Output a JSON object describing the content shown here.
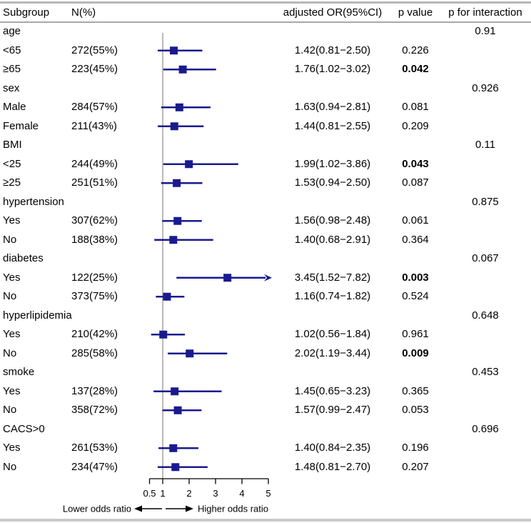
{
  "header": {
    "subgroup": "Subgroup",
    "n": "N(%)",
    "or": "adjusted OR(95%CI)",
    "p": "p value",
    "p_interaction": "p for interaction"
  },
  "footer": {
    "lower": "Lower odds ratio",
    "higher": "Higher odds ratio"
  },
  "colors": {
    "marker": "#1a1a8f",
    "ci_line": "#1a1a8f",
    "reference_line": "#b3b3b3",
    "axis": "#000000",
    "border": "#b7b7b7"
  },
  "chart_data": {
    "type": "forest",
    "title": "Subgroup analysis forest plot",
    "axis": {
      "scale": "linear",
      "min": 0.5,
      "max": 5,
      "reference": 1,
      "ticks": [
        "0.5",
        "1",
        "2",
        "3",
        "4",
        "5"
      ],
      "tick_values": [
        0.5,
        1,
        2,
        3,
        4,
        5
      ]
    },
    "rows": [
      {
        "kind": "group",
        "label": "age",
        "p_interaction": "0.91"
      },
      {
        "kind": "item",
        "label": "<65",
        "n": "272(55%)",
        "or": 1.42,
        "ci_low": 0.81,
        "ci_high": 2.5,
        "or_text": "1.42(0.81−2.50)",
        "p": "0.226",
        "p_bold": false
      },
      {
        "kind": "item",
        "label": "≥65",
        "n": "223(45%)",
        "or": 1.76,
        "ci_low": 1.02,
        "ci_high": 3.02,
        "or_text": "1.76(1.02−3.02)",
        "p": "0.042",
        "p_bold": true
      },
      {
        "kind": "group",
        "label": "sex",
        "p_interaction": "0.926"
      },
      {
        "kind": "item",
        "label": "Male",
        "n": "284(57%)",
        "or": 1.63,
        "ci_low": 0.94,
        "ci_high": 2.81,
        "or_text": "1.63(0.94−2.81)",
        "p": "0.081",
        "p_bold": false
      },
      {
        "kind": "item",
        "label": "Female",
        "n": "211(43%)",
        "or": 1.44,
        "ci_low": 0.81,
        "ci_high": 2.55,
        "or_text": "1.44(0.81−2.55)",
        "p": "0.209",
        "p_bold": false
      },
      {
        "kind": "group",
        "label": "BMI",
        "p_interaction": "0.11"
      },
      {
        "kind": "item",
        "label": "<25",
        "n": "244(49%)",
        "or": 1.99,
        "ci_low": 1.02,
        "ci_high": 3.86,
        "or_text": "1.99(1.02−3.86)",
        "p": "0.043",
        "p_bold": true
      },
      {
        "kind": "item",
        "label": "≥25",
        "n": "251(51%)",
        "or": 1.53,
        "ci_low": 0.94,
        "ci_high": 2.5,
        "or_text": "1.53(0.94−2.50)",
        "p": "0.087",
        "p_bold": false
      },
      {
        "kind": "group",
        "label": "hypertension",
        "p_interaction": "0.875"
      },
      {
        "kind": "item",
        "label": "Yes",
        "n": "307(62%)",
        "or": 1.56,
        "ci_low": 0.98,
        "ci_high": 2.48,
        "or_text": "1.56(0.98−2.48)",
        "p": "0.061",
        "p_bold": false
      },
      {
        "kind": "item",
        "label": "No",
        "n": "188(38%)",
        "or": 1.4,
        "ci_low": 0.68,
        "ci_high": 2.91,
        "or_text": "1.40(0.68−2.91)",
        "p": "0.364",
        "p_bold": false
      },
      {
        "kind": "group",
        "label": "diabetes",
        "p_interaction": "0.067"
      },
      {
        "kind": "item",
        "label": "Yes",
        "n": "122(25%)",
        "or": 3.45,
        "ci_low": 1.52,
        "ci_high": 7.82,
        "or_text": "3.45(1.52−7.82)",
        "p": "0.003",
        "p_bold": true,
        "arrow_right": true
      },
      {
        "kind": "item",
        "label": "No",
        "n": "373(75%)",
        "or": 1.16,
        "ci_low": 0.74,
        "ci_high": 1.82,
        "or_text": "1.16(0.74−1.82)",
        "p": "0.524",
        "p_bold": false
      },
      {
        "kind": "group",
        "label": "hyperlipidemia",
        "p_interaction": "0.648"
      },
      {
        "kind": "item",
        "label": "Yes",
        "n": "210(42%)",
        "or": 1.02,
        "ci_low": 0.56,
        "ci_high": 1.84,
        "or_text": "1.02(0.56−1.84)",
        "p": "0.961",
        "p_bold": false
      },
      {
        "kind": "item",
        "label": "No",
        "n": "285(58%)",
        "or": 2.02,
        "ci_low": 1.19,
        "ci_high": 3.44,
        "or_text": "2.02(1.19−3.44)",
        "p": "0.009",
        "p_bold": true
      },
      {
        "kind": "group",
        "label": "smoke",
        "p_interaction": "0.453"
      },
      {
        "kind": "item",
        "label": "Yes",
        "n": "137(28%)",
        "or": 1.45,
        "ci_low": 0.65,
        "ci_high": 3.23,
        "or_text": "1.45(0.65−3.23)",
        "p": "0.365",
        "p_bold": false
      },
      {
        "kind": "item",
        "label": "No",
        "n": "358(72%)",
        "or": 1.57,
        "ci_low": 0.99,
        "ci_high": 2.47,
        "or_text": "1.57(0.99−2.47)",
        "p": "0.053",
        "p_bold": false
      },
      {
        "kind": "group",
        "label": "CACS>0",
        "p_interaction": "0.696"
      },
      {
        "kind": "item",
        "label": "Yes",
        "n": "261(53%)",
        "or": 1.4,
        "ci_low": 0.84,
        "ci_high": 2.35,
        "or_text": "1.40(0.84−2.35)",
        "p": "0.196",
        "p_bold": false
      },
      {
        "kind": "item",
        "label": "No",
        "n": "234(47%)",
        "or": 1.48,
        "ci_low": 0.81,
        "ci_high": 2.7,
        "or_text": "1.48(0.81−2.70)",
        "p": "0.207",
        "p_bold": false
      }
    ]
  }
}
